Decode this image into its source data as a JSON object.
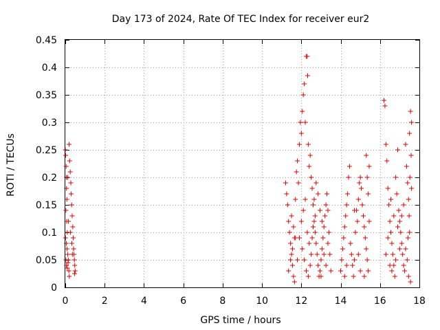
{
  "chart_data": {
    "type": "scatter",
    "title": "Day 173 of 2024, Rate Of TEC Index for receiver eur2",
    "xlabel": "GPS time / hours",
    "ylabel": "ROTI / TECUs",
    "xlim": [
      0,
      18
    ],
    "ylim": [
      0,
      0.45
    ],
    "xticks": [
      0,
      2,
      4,
      6,
      8,
      10,
      12,
      14,
      16,
      18
    ],
    "yticks": [
      0,
      0.05,
      0.1,
      0.15,
      0.2,
      0.25,
      0.3,
      0.35,
      0.4,
      0.45
    ],
    "xtick_labels": [
      "0",
      "2",
      "4",
      "6",
      "8",
      "10",
      "12",
      "14",
      "16",
      "18"
    ],
    "ytick_labels": [
      "0",
      "0.05",
      "0.1",
      "0.15",
      "0.2",
      "0.25",
      "0.3",
      "0.35",
      "0.4",
      "0.45"
    ],
    "grid": true,
    "marker": "+",
    "series": [
      {
        "name": "ROTI",
        "color": "#e00000",
        "points": [
          [
            0.0,
            0.25
          ],
          [
            0.02,
            0.24
          ],
          [
            0.04,
            0.22
          ],
          [
            0.05,
            0.2
          ],
          [
            0.06,
            0.18
          ],
          [
            0.08,
            0.16
          ],
          [
            0.03,
            0.14
          ],
          [
            0.07,
            0.12
          ],
          [
            0.1,
            0.1
          ],
          [
            0.01,
            0.09
          ],
          [
            0.05,
            0.08
          ],
          [
            0.09,
            0.07
          ],
          [
            0.12,
            0.06
          ],
          [
            0.03,
            0.05
          ],
          [
            0.15,
            0.05
          ],
          [
            0.06,
            0.04
          ],
          [
            0.18,
            0.03
          ],
          [
            0.2,
            0.02
          ],
          [
            0.1,
            0.035
          ],
          [
            0.14,
            0.045
          ],
          [
            0.22,
            0.23
          ],
          [
            0.25,
            0.21
          ],
          [
            0.28,
            0.19
          ],
          [
            0.3,
            0.17
          ],
          [
            0.32,
            0.15
          ],
          [
            0.35,
            0.13
          ],
          [
            0.38,
            0.11
          ],
          [
            0.4,
            0.09
          ],
          [
            0.42,
            0.07
          ],
          [
            0.44,
            0.06
          ],
          [
            0.46,
            0.05
          ],
          [
            0.48,
            0.04
          ],
          [
            0.5,
            0.03
          ],
          [
            0.47,
            0.025
          ],
          [
            0.36,
            0.06
          ],
          [
            0.33,
            0.08
          ],
          [
            0.26,
            0.1
          ],
          [
            0.16,
            0.12
          ],
          [
            0.19,
            0.26
          ],
          [
            0.12,
            0.2
          ],
          [
            11.2,
            0.19
          ],
          [
            11.25,
            0.17
          ],
          [
            11.3,
            0.15
          ],
          [
            11.35,
            0.12
          ],
          [
            11.4,
            0.1
          ],
          [
            11.45,
            0.08
          ],
          [
            11.5,
            0.06
          ],
          [
            11.55,
            0.04
          ],
          [
            11.6,
            0.02
          ],
          [
            11.65,
            0.01
          ],
          [
            11.7,
            0.16
          ],
          [
            11.75,
            0.21
          ],
          [
            11.8,
            0.23
          ],
          [
            11.85,
            0.19
          ],
          [
            11.9,
            0.26
          ],
          [
            11.95,
            0.3
          ],
          [
            12.0,
            0.28
          ],
          [
            12.05,
            0.32
          ],
          [
            12.1,
            0.35
          ],
          [
            12.15,
            0.37
          ],
          [
            12.2,
            0.3
          ],
          [
            12.25,
            0.42
          ],
          [
            12.3,
            0.42
          ],
          [
            12.32,
            0.385
          ],
          [
            12.35,
            0.26
          ],
          [
            12.4,
            0.22
          ],
          [
            12.45,
            0.24
          ],
          [
            12.5,
            0.2
          ],
          [
            12.55,
            0.18
          ],
          [
            12.6,
            0.15
          ],
          [
            12.65,
            0.12
          ],
          [
            12.7,
            0.1
          ],
          [
            12.75,
            0.08
          ],
          [
            12.8,
            0.06
          ],
          [
            12.85,
            0.04
          ],
          [
            12.9,
            0.02
          ],
          [
            12.95,
            0.03
          ],
          [
            13.0,
            0.05
          ],
          [
            13.05,
            0.07
          ],
          [
            13.1,
            0.09
          ],
          [
            13.15,
            0.11
          ],
          [
            13.2,
            0.13
          ],
          [
            13.25,
            0.15
          ],
          [
            13.3,
            0.17
          ],
          [
            13.35,
            0.14
          ],
          [
            13.4,
            0.1
          ],
          [
            13.45,
            0.06
          ],
          [
            13.5,
            0.03
          ],
          [
            12.0,
            0.12
          ],
          [
            12.1,
            0.14
          ],
          [
            12.2,
            0.16
          ],
          [
            12.3,
            0.1
          ],
          [
            12.4,
            0.08
          ],
          [
            12.5,
            0.06
          ],
          [
            11.8,
            0.05
          ],
          [
            11.9,
            0.09
          ],
          [
            12.6,
            0.11
          ],
          [
            12.7,
            0.13
          ],
          [
            13.0,
            0.02
          ],
          [
            11.5,
            0.13
          ],
          [
            11.6,
            0.11
          ],
          [
            11.7,
            0.09
          ],
          [
            12.05,
            0.07
          ],
          [
            12.15,
            0.05
          ],
          [
            12.25,
            0.03
          ],
          [
            12.35,
            0.02
          ],
          [
            12.45,
            0.04
          ],
          [
            12.55,
            0.09
          ],
          [
            12.65,
            0.16
          ],
          [
            12.75,
            0.19
          ],
          [
            12.85,
            0.17
          ],
          [
            12.95,
            0.14
          ],
          [
            13.05,
            0.12
          ],
          [
            13.15,
            0.06
          ],
          [
            13.25,
            0.04
          ],
          [
            13.35,
            0.08
          ],
          [
            11.35,
            0.03
          ],
          [
            11.45,
            0.05
          ],
          [
            11.55,
            0.07
          ],
          [
            11.65,
            0.09
          ],
          [
            14.0,
            0.03
          ],
          [
            14.05,
            0.05
          ],
          [
            14.1,
            0.07
          ],
          [
            14.15,
            0.09
          ],
          [
            14.2,
            0.11
          ],
          [
            14.25,
            0.13
          ],
          [
            14.3,
            0.15
          ],
          [
            14.35,
            0.17
          ],
          [
            14.4,
            0.2
          ],
          [
            14.45,
            0.22
          ],
          [
            14.5,
            0.08
          ],
          [
            14.55,
            0.06
          ],
          [
            14.6,
            0.04
          ],
          [
            14.65,
            0.02
          ],
          [
            14.7,
            0.05
          ],
          [
            14.75,
            0.1
          ],
          [
            14.8,
            0.14
          ],
          [
            14.85,
            0.12
          ],
          [
            14.9,
            0.16
          ],
          [
            14.95,
            0.19
          ],
          [
            15.0,
            0.2
          ],
          [
            15.05,
            0.18
          ],
          [
            15.1,
            0.15
          ],
          [
            15.15,
            0.13
          ],
          [
            15.2,
            0.11
          ],
          [
            15.25,
            0.09
          ],
          [
            15.3,
            0.07
          ],
          [
            15.35,
            0.05
          ],
          [
            15.4,
            0.03
          ],
          [
            15.45,
            0.22
          ],
          [
            15.3,
            0.24
          ],
          [
            15.35,
            0.2
          ],
          [
            15.4,
            0.17
          ],
          [
            15.45,
            0.12
          ],
          [
            15.2,
            0.02
          ],
          [
            14.9,
            0.06
          ],
          [
            14.7,
            0.14
          ],
          [
            14.3,
            0.04
          ],
          [
            14.2,
            0.02
          ],
          [
            15.0,
            0.03
          ],
          [
            16.2,
            0.34
          ],
          [
            16.25,
            0.33
          ],
          [
            16.3,
            0.26
          ],
          [
            16.35,
            0.23
          ],
          [
            16.4,
            0.18
          ],
          [
            16.45,
            0.15
          ],
          [
            16.5,
            0.12
          ],
          [
            16.55,
            0.1
          ],
          [
            16.6,
            0.08
          ],
          [
            16.65,
            0.06
          ],
          [
            16.7,
            0.04
          ],
          [
            16.75,
            0.02
          ],
          [
            16.8,
            0.2
          ],
          [
            16.85,
            0.17
          ],
          [
            16.9,
            0.25
          ],
          [
            16.95,
            0.14
          ],
          [
            17.0,
            0.12
          ],
          [
            17.05,
            0.1
          ],
          [
            17.1,
            0.08
          ],
          [
            17.15,
            0.06
          ],
          [
            17.2,
            0.04
          ],
          [
            17.25,
            0.03
          ],
          [
            17.3,
            0.26
          ],
          [
            17.35,
            0.22
          ],
          [
            17.4,
            0.19
          ],
          [
            17.45,
            0.16
          ],
          [
            17.5,
            0.28
          ],
          [
            17.55,
            0.32
          ],
          [
            17.6,
            0.3
          ],
          [
            17.58,
            0.24
          ],
          [
            17.52,
            0.2
          ],
          [
            17.48,
            0.13
          ],
          [
            17.42,
            0.09
          ],
          [
            17.38,
            0.05
          ],
          [
            17.55,
            0.01
          ],
          [
            16.6,
            0.03
          ],
          [
            16.8,
            0.05
          ],
          [
            17.0,
            0.07
          ],
          [
            16.4,
            0.09
          ],
          [
            16.5,
            0.04
          ],
          [
            16.9,
            0.11
          ],
          [
            17.1,
            0.13
          ],
          [
            17.2,
            0.15
          ],
          [
            17.6,
            0.18
          ],
          [
            17.3,
            0.07
          ],
          [
            16.3,
            0.06
          ],
          [
            16.7,
            0.13
          ],
          [
            17.5,
            0.1
          ],
          [
            17.45,
            0.02
          ],
          [
            16.55,
            0.16
          ]
        ]
      }
    ]
  }
}
